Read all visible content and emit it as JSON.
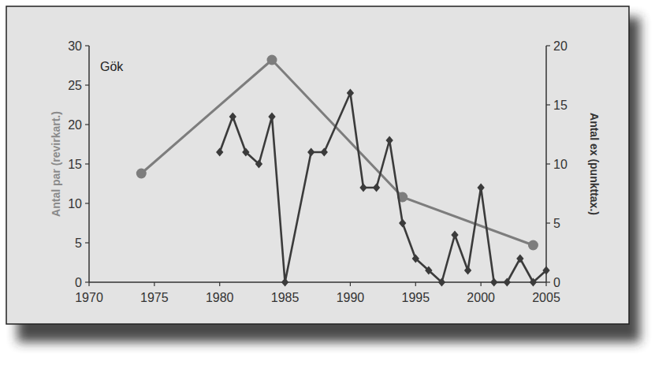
{
  "chart_data": {
    "type": "line",
    "title": "Gök",
    "y_label": "Antal par (revirkart.)",
    "y2_label": "Antal ex (punkttax.)",
    "xlim": [
      1970,
      2005
    ],
    "xticks": [
      1970,
      1975,
      1980,
      1985,
      1990,
      1995,
      2000,
      2005
    ],
    "ylim": [
      0,
      30
    ],
    "yticks": [
      0,
      5,
      10,
      15,
      20,
      25,
      30
    ],
    "y2lim": [
      0,
      20
    ],
    "y2ticks": [
      0,
      5,
      10,
      15,
      20
    ],
    "grid": false,
    "series": [
      {
        "color": "#7d7d7d",
        "marker": "circle",
        "line_style": "solid",
        "x": [
          1974,
          1984,
          1994,
          2004
        ],
        "values": [
          13.8,
          28.2,
          10.8,
          4.7
        ]
      },
      {
        "color": "#3b3b3b",
        "marker": "diamond",
        "line_style": "solid",
        "axis": "y2",
        "x": [
          1980,
          1981,
          1982,
          1983,
          1984,
          1985,
          1987,
          1988,
          1990,
          1991,
          1992,
          1993,
          1994,
          1995,
          1996,
          1997,
          1998,
          1999,
          2000,
          2001,
          2002,
          2003,
          2004,
          2005
        ],
        "values": [
          11,
          14,
          11,
          10,
          14,
          0,
          11,
          11,
          16,
          8,
          8,
          12,
          5,
          2,
          1,
          0,
          4,
          1,
          8,
          0,
          0,
          2,
          0,
          1
        ]
      }
    ]
  }
}
